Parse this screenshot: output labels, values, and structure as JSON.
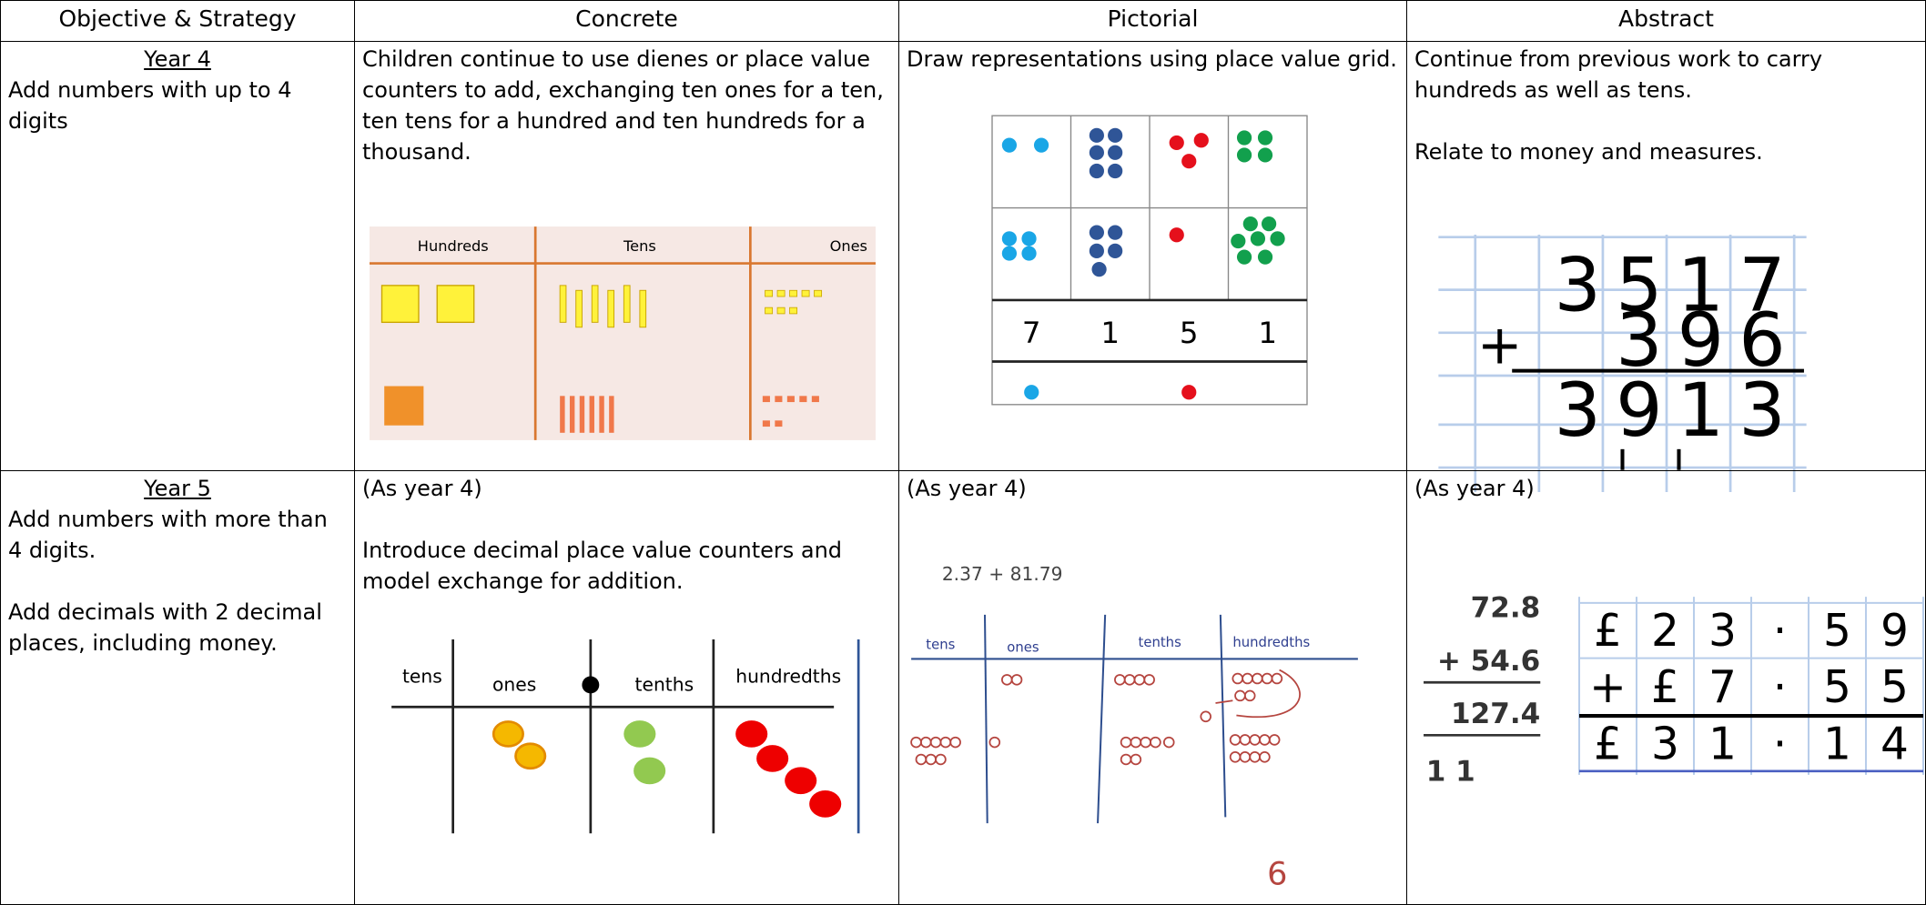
{
  "table": {
    "headers": [
      "Objective & Strategy",
      "Concrete",
      "Pictorial",
      "Abstract"
    ],
    "rows": [
      {
        "objective": {
          "year": "Year 4",
          "text": [
            "Add numbers with up to 4 digits"
          ]
        },
        "concrete": {
          "text": [
            "Children continue to use dienes or place value counters to add, exchanging ten ones for a ten, ten tens for a hundred and ten hundreds for a thousand."
          ],
          "figure": {
            "labels": [
              "Hundreds",
              "Tens",
              "Ones"
            ]
          }
        },
        "pictorial": {
          "text": [
            "Draw representations using place value grid."
          ],
          "figure": {
            "digits": [
              "7",
              "1",
              "5",
              "1"
            ]
          }
        },
        "abstract": {
          "text": [
            "Continue from previous work to carry hundreds as well as tens.",
            "Relate to money and measures."
          ],
          "figure": {
            "first": "3517",
            "operator": "+",
            "second": "396",
            "answer": "3913"
          }
        }
      },
      {
        "objective": {
          "year": "Year 5",
          "text": [
            "Add numbers with more than 4 digits.",
            "Add decimals with 2 decimal places, including money."
          ]
        },
        "concrete": {
          "text": [
            "(As year 4)",
            "Introduce decimal place value counters and model exchange for addition."
          ],
          "figure": {
            "labels": [
              "tens",
              "ones",
              "tenths",
              "hundredths"
            ]
          }
        },
        "pictorial": {
          "text": [
            "(As year 4)"
          ],
          "figure": {
            "sum": "2.37 + 81.79",
            "labels": [
              "tens",
              "ones",
              "tenths",
              "hundredths"
            ],
            "answer": "6"
          }
        },
        "abstract": {
          "text": [
            "(As year 4)"
          ],
          "column_sum": [
            "72.8",
            "+ 54.6",
            "127.4",
            "1 1"
          ],
          "money_sum": [
            [
              "£",
              "2",
              "3",
              "·",
              "5",
              "9"
            ],
            [
              "+",
              "£",
              "7",
              "·",
              "5",
              "5"
            ],
            [
              "£",
              "3",
              "1",
              "·",
              "1",
              "4"
            ]
          ]
        }
      }
    ]
  }
}
